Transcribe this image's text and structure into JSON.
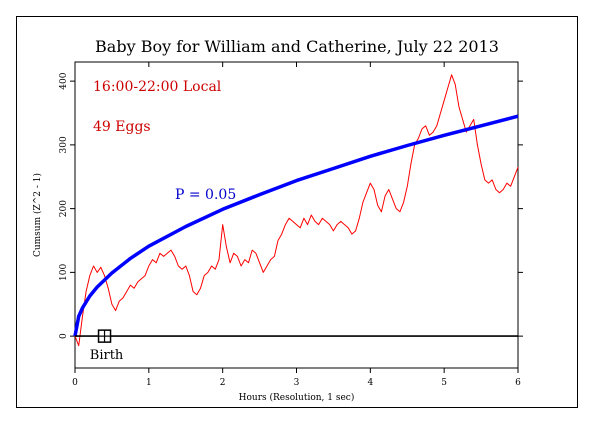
{
  "chart_data": {
    "type": "line",
    "title": "Baby Boy for William and Catherine, July 22 2013",
    "xlabel": "Hours (Resolution, 1 sec)",
    "ylabel": "Cumsum (Z^2 - 1)",
    "xlim": [
      0,
      6
    ],
    "ylim": [
      -50,
      430
    ],
    "x_ticks": [
      "0",
      "1",
      "2",
      "3",
      "4",
      "5",
      "6"
    ],
    "y_ticks": [
      "0",
      "100",
      "200",
      "300",
      "400"
    ],
    "grid": false,
    "annotations": {
      "time_window": "16:00-22:00 Local",
      "eggs": "49 Eggs",
      "p_label": "P = 0.05",
      "event_label": "Birth"
    },
    "event_marker": {
      "x": 0.4,
      "y": 0
    },
    "series": [
      {
        "color": "#ff0000",
        "x": [
          0,
          0.05,
          0.1,
          0.15,
          0.2,
          0.25,
          0.3,
          0.35,
          0.4,
          0.45,
          0.5,
          0.55,
          0.6,
          0.65,
          0.7,
          0.75,
          0.8,
          0.85,
          0.9,
          0.95,
          1.0,
          1.05,
          1.1,
          1.15,
          1.2,
          1.25,
          1.3,
          1.35,
          1.4,
          1.45,
          1.5,
          1.55,
          1.6,
          1.65,
          1.7,
          1.75,
          1.8,
          1.85,
          1.9,
          1.95,
          2.0,
          2.05,
          2.1,
          2.15,
          2.2,
          2.25,
          2.3,
          2.35,
          2.4,
          2.45,
          2.5,
          2.55,
          2.6,
          2.65,
          2.7,
          2.75,
          2.8,
          2.85,
          2.9,
          2.95,
          3.0,
          3.05,
          3.1,
          3.15,
          3.2,
          3.25,
          3.3,
          3.35,
          3.4,
          3.45,
          3.5,
          3.55,
          3.6,
          3.65,
          3.7,
          3.75,
          3.8,
          3.85,
          3.9,
          3.95,
          4.0,
          4.05,
          4.1,
          4.15,
          4.2,
          4.25,
          4.3,
          4.35,
          4.4,
          4.45,
          4.5,
          4.55,
          4.6,
          4.65,
          4.7,
          4.75,
          4.8,
          4.85,
          4.9,
          4.95,
          5.0,
          5.05,
          5.1,
          5.15,
          5.2,
          5.25,
          5.3,
          5.35,
          5.4,
          5.45,
          5.5,
          5.55,
          5.6,
          5.65,
          5.7,
          5.75,
          5.8,
          5.85,
          5.9,
          5.95,
          6.0
        ],
        "values": [
          0,
          -15,
          30,
          70,
          95,
          110,
          100,
          108,
          95,
          75,
          50,
          40,
          55,
          60,
          70,
          80,
          75,
          85,
          90,
          95,
          110,
          120,
          115,
          130,
          125,
          130,
          135,
          125,
          110,
          105,
          110,
          95,
          70,
          65,
          75,
          95,
          100,
          110,
          105,
          120,
          175,
          140,
          115,
          130,
          125,
          110,
          120,
          115,
          135,
          130,
          115,
          100,
          110,
          120,
          125,
          150,
          160,
          175,
          185,
          180,
          175,
          170,
          185,
          175,
          190,
          180,
          175,
          185,
          180,
          175,
          165,
          175,
          180,
          175,
          170,
          160,
          165,
          185,
          210,
          225,
          240,
          230,
          205,
          195,
          220,
          230,
          215,
          200,
          195,
          210,
          235,
          270,
          300,
          310,
          325,
          330,
          315,
          320,
          330,
          350,
          370,
          390,
          410,
          395,
          360,
          340,
          320,
          330,
          340,
          300,
          270,
          245,
          240,
          245,
          230,
          225,
          230,
          240,
          235,
          250,
          265
        ]
      },
      {
        "name": "P = 0.05",
        "color": "#0000ff",
        "x": [
          0,
          0.05,
          0.1,
          0.2,
          0.3,
          0.5,
          0.75,
          1.0,
          1.5,
          2.0,
          2.5,
          3.0,
          3.5,
          4.0,
          4.5,
          5.0,
          5.5,
          6.0
        ],
        "values": [
          0,
          31,
          44,
          63,
          77,
          99,
          122,
          141,
          172,
          199,
          222,
          244,
          263,
          282,
          299,
          315,
          330,
          345
        ]
      },
      {
        "color": "#000000",
        "x": [
          0,
          6
        ],
        "values": [
          0,
          0
        ]
      }
    ]
  }
}
